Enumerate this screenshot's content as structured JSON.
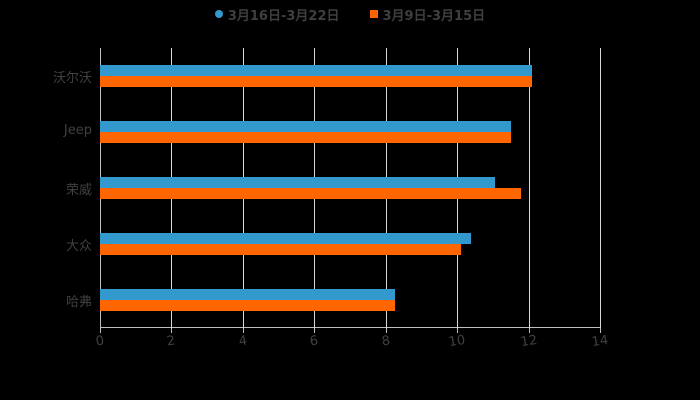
{
  "legend": [
    {
      "label": "3月16日-3月22日",
      "color": "#3399cc",
      "shape": "circle"
    },
    {
      "label": "3月9日-3月15日",
      "color": "#ff6600",
      "shape": "square"
    }
  ],
  "chart_data": {
    "type": "bar",
    "orientation": "horizontal",
    "title": "",
    "xlabel": "",
    "ylabel": "",
    "categories": [
      "沃尔沃",
      "Jeep",
      "荣威",
      "大众",
      "哈弗"
    ],
    "series": [
      {
        "name": "3月16日-3月22日",
        "color": "#3399cc",
        "values": [
          12.1,
          11.5,
          11.05,
          10.4,
          8.25
        ]
      },
      {
        "name": "3月9日-3月15日",
        "color": "#ff6600",
        "values": [
          12.1,
          11.5,
          11.8,
          10.1,
          8.25
        ]
      }
    ],
    "xlim": [
      0,
      14
    ],
    "xticks": [
      "0",
      "2",
      "4",
      "6",
      "8",
      "10",
      "12",
      "14"
    ],
    "grid": true,
    "legend_position": "top"
  }
}
